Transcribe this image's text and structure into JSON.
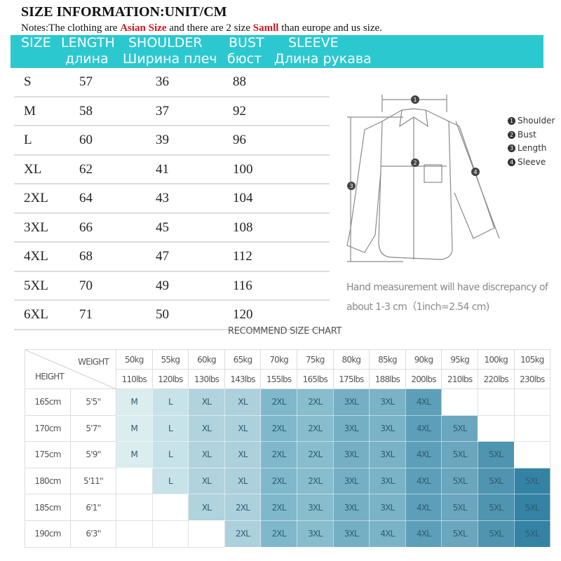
{
  "title": "SIZE INFORMATION:UNIT/CM",
  "notes": {
    "prefix": "Notes:The clothing are ",
    "highlight1": "Asian Size",
    "middle": " and there are 2 size ",
    "highlight2": "Samll",
    "suffix": " than europe and us size."
  },
  "header_band": {
    "color": "#2cc8cf",
    "columns": [
      {
        "en": "SIZE",
        "ru": ""
      },
      {
        "en": "LENGTH",
        "ru": "длина"
      },
      {
        "en": "SHOULDER",
        "ru": "Ширина плеч"
      },
      {
        "en": "BUST",
        "ru": "бюст"
      },
      {
        "en": "SLEEVE",
        "ru": "Длина рукава"
      }
    ]
  },
  "size_table": {
    "rows": [
      {
        "size": "S",
        "length": "57",
        "shoulder": "36",
        "bust": "88"
      },
      {
        "size": "M",
        "length": "58",
        "shoulder": "37",
        "bust": "92"
      },
      {
        "size": "L",
        "length": "60",
        "shoulder": "39",
        "bust": "96"
      },
      {
        "size": "XL",
        "length": "62",
        "shoulder": "41",
        "bust": "100"
      },
      {
        "size": "2XL",
        "length": "64",
        "shoulder": "43",
        "bust": "104"
      },
      {
        "size": "3XL",
        "length": "66",
        "shoulder": "45",
        "bust": "108"
      },
      {
        "size": "4XL",
        "length": "68",
        "shoulder": "47",
        "bust": "112"
      },
      {
        "size": "5XL",
        "length": "70",
        "shoulder": "49",
        "bust": "116"
      },
      {
        "size": "6XL",
        "length": "71",
        "shoulder": "50",
        "bust": "120"
      }
    ]
  },
  "diagram": {
    "legend": [
      {
        "num": "1",
        "label": "Shoulder"
      },
      {
        "num": "2",
        "label": "Bust"
      },
      {
        "num": "3",
        "label": "Length"
      },
      {
        "num": "4",
        "label": "Sleeve"
      }
    ]
  },
  "hand_note": {
    "line1": "Hand measurement will have discrepancy of",
    "line2": "about 1-3 cm（1inch=2.54 cm)"
  },
  "recommend": {
    "title": "RECOMMEND SIZE CHART",
    "weight_label": "WEIGHT",
    "height_label": "HEIGHT",
    "weights_kg": [
      "50kg",
      "55kg",
      "60kg",
      "65kg",
      "70kg",
      "75kg",
      "80kg",
      "85kg",
      "90kg",
      "95kg",
      "100kg",
      "105kg"
    ],
    "weights_lbs": [
      "110lbs",
      "120lbs",
      "130lbs",
      "143lbs",
      "155lbs",
      "165lbs",
      "175lbs",
      "188lbs",
      "200lbs",
      "210lbs",
      "220lbs",
      "230lbs"
    ],
    "rows": [
      {
        "cm": "165cm",
        "ft": "5'5''",
        "sizes": [
          "M",
          "L",
          "XL",
          "XL",
          "2XL",
          "2XL",
          "3XL",
          "3XL",
          "4XL",
          "",
          "",
          ""
        ]
      },
      {
        "cm": "170cm",
        "ft": "5'7''",
        "sizes": [
          "M",
          "L",
          "XL",
          "XL",
          "2XL",
          "2XL",
          "3XL",
          "3XL",
          "4XL",
          "5XL",
          "",
          ""
        ]
      },
      {
        "cm": "175cm",
        "ft": "5'9''",
        "sizes": [
          "M",
          "L",
          "XL",
          "XL",
          "2XL",
          "2XL",
          "3XL",
          "3XL",
          "4XL",
          "5XL",
          "5XL",
          ""
        ]
      },
      {
        "cm": "180cm",
        "ft": "5'11''",
        "sizes": [
          "",
          "L",
          "XL",
          "XL",
          "2XL",
          "2XL",
          "3XL",
          "3XL",
          "4XL",
          "5XL",
          "5XL",
          "5XL"
        ]
      },
      {
        "cm": "185cm",
        "ft": "6'1''",
        "sizes": [
          "",
          "",
          "XL",
          "2XL",
          "2XL",
          "3XL",
          "3XL",
          "3XL",
          "4XL",
          "5XL",
          "5XL",
          "5XL"
        ]
      },
      {
        "cm": "190cm",
        "ft": "6'3''",
        "sizes": [
          "",
          "",
          "",
          "2XL",
          "2XL",
          "3XL",
          "3XL",
          "4XL",
          "4XL",
          "5XL",
          "5XL",
          "5XL"
        ]
      }
    ],
    "size_colors": {
      "M": "#dcedf0",
      "L": "#c6e1e8",
      "XL": "#afd2de",
      "2XL": "#86bccd",
      "3XL": "#74afc4",
      "4XL": "#5d9fb8",
      "5XL": "#4f94b0"
    },
    "col_colors": [
      "#dcedf0",
      "#c8e2e9",
      "#b0d3de",
      "#acd0dc",
      "#7fb8ca",
      "#87bdcd",
      "#74afc4",
      "#7bb3c6",
      "#5d9fb8",
      "#6aa6bd",
      "#4f94b0",
      "#3483a5"
    ]
  }
}
